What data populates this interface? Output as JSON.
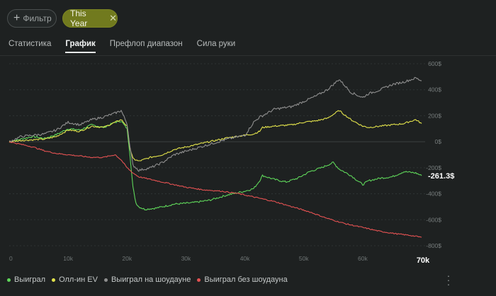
{
  "filters": {
    "add_label": "Фильтр",
    "add_icon": "plus-icon",
    "active_chip": "This Year",
    "remove_icon": "close-icon",
    "active_color": "#717a1e"
  },
  "tabs": [
    {
      "label": "Статистика",
      "active": false
    },
    {
      "label": "График",
      "active": true
    },
    {
      "label": "Префлоп диапазон",
      "active": false
    },
    {
      "label": "Сила руки",
      "active": false
    }
  ],
  "chart_data": {
    "type": "line",
    "x_ticks": [
      "0",
      "10k",
      "20k",
      "30k",
      "40k",
      "50k",
      "60k",
      "70k"
    ],
    "x_range": [
      0,
      70000
    ],
    "y_ticks": [
      "600$",
      "400$",
      "200$",
      "0$",
      "-200$",
      "-400$",
      "-600$",
      "-800$"
    ],
    "ylim": [
      -800,
      600
    ],
    "value_label": "-261.3$",
    "legend_position": "bottom-left",
    "series": [
      {
        "name": "Выиграл",
        "color": "#5fd65a",
        "x": [
          0,
          2000,
          4000,
          6000,
          8000,
          10000,
          12000,
          14000,
          16000,
          18000,
          19000,
          20000,
          20500,
          21000,
          21500,
          22000,
          23000,
          25000,
          28000,
          31000,
          34000,
          37000,
          40000,
          41500,
          42500,
          43000,
          45000,
          47000,
          49000,
          51000,
          53000,
          55000,
          56000,
          58000,
          60000,
          61000,
          63000,
          65000,
          67000,
          69000,
          70000
        ],
        "values": [
          0,
          20,
          40,
          25,
          55,
          100,
          90,
          130,
          110,
          150,
          160,
          100,
          -100,
          -350,
          -470,
          -500,
          -520,
          -510,
          -480,
          -470,
          -450,
          -410,
          -380,
          -360,
          -300,
          -260,
          -290,
          -310,
          -280,
          -230,
          -200,
          -160,
          -210,
          -260,
          -330,
          -300,
          -280,
          -270,
          -230,
          -240,
          -261.3
        ]
      },
      {
        "name": "Олл-ин EV",
        "color": "#e2e24b",
        "x": [
          0,
          2000,
          4000,
          6000,
          8000,
          10000,
          12000,
          14000,
          16000,
          18000,
          19000,
          20000,
          20500,
          21000,
          22000,
          24000,
          26000,
          28000,
          31000,
          34000,
          37000,
          40000,
          41500,
          42500,
          43000,
          45000,
          48000,
          50000,
          52000,
          54000,
          55000,
          56000,
          58000,
          60000,
          61000,
          63000,
          65000,
          67000,
          69000,
          70000
        ],
        "values": [
          0,
          10,
          15,
          20,
          40,
          90,
          80,
          120,
          110,
          150,
          170,
          120,
          -50,
          -130,
          -150,
          -120,
          -100,
          -60,
          -30,
          0,
          30,
          50,
          60,
          80,
          110,
          120,
          130,
          150,
          160,
          180,
          210,
          240,
          170,
          120,
          110,
          120,
          130,
          140,
          170,
          140
        ]
      },
      {
        "name": "Выиграл на шоудауне",
        "color": "#8f8f8f",
        "x": [
          0,
          2000,
          4000,
          6000,
          8000,
          10000,
          12000,
          14000,
          16000,
          18000,
          19000,
          20000,
          20500,
          21000,
          22000,
          24000,
          26000,
          28000,
          31000,
          34000,
          37000,
          40000,
          41500,
          42500,
          43000,
          45000,
          48000,
          50000,
          52000,
          54000,
          55000,
          56000,
          58000,
          60000,
          61000,
          63000,
          65000,
          67000,
          69000,
          70000
        ],
        "values": [
          0,
          40,
          50,
          60,
          90,
          150,
          130,
          170,
          190,
          220,
          240,
          140,
          -40,
          -180,
          -220,
          -200,
          -160,
          -100,
          -60,
          -20,
          20,
          50,
          150,
          190,
          200,
          250,
          270,
          310,
          350,
          400,
          440,
          480,
          380,
          340,
          370,
          400,
          440,
          460,
          490,
          470
        ]
      },
      {
        "name": "Выиграл без шоудауна",
        "color": "#e35252",
        "x": [
          0,
          2000,
          4000,
          6000,
          8000,
          10000,
          12000,
          14000,
          16000,
          18000,
          19000,
          20000,
          21000,
          22000,
          24000,
          27000,
          30000,
          33000,
          36000,
          39000,
          42000,
          45000,
          48000,
          51000,
          54000,
          57000,
          60000,
          63000,
          66000,
          68000,
          70000
        ],
        "values": [
          0,
          -20,
          -40,
          -70,
          -90,
          -100,
          -110,
          -120,
          -120,
          -100,
          -140,
          -200,
          -240,
          -270,
          -290,
          -320,
          -350,
          -370,
          -380,
          -400,
          -430,
          -460,
          -500,
          -540,
          -590,
          -630,
          -660,
          -690,
          -710,
          -720,
          -735
        ]
      }
    ]
  },
  "legend": {
    "items": [
      "Выиграл",
      "Олл-ин EV",
      "Выиграл на шоудауне",
      "Выиграл без шоудауна"
    ],
    "colors": [
      "#5fd65a",
      "#e2e24b",
      "#8f8f8f",
      "#e35252"
    ]
  },
  "more_icon": "kebab-menu-icon"
}
